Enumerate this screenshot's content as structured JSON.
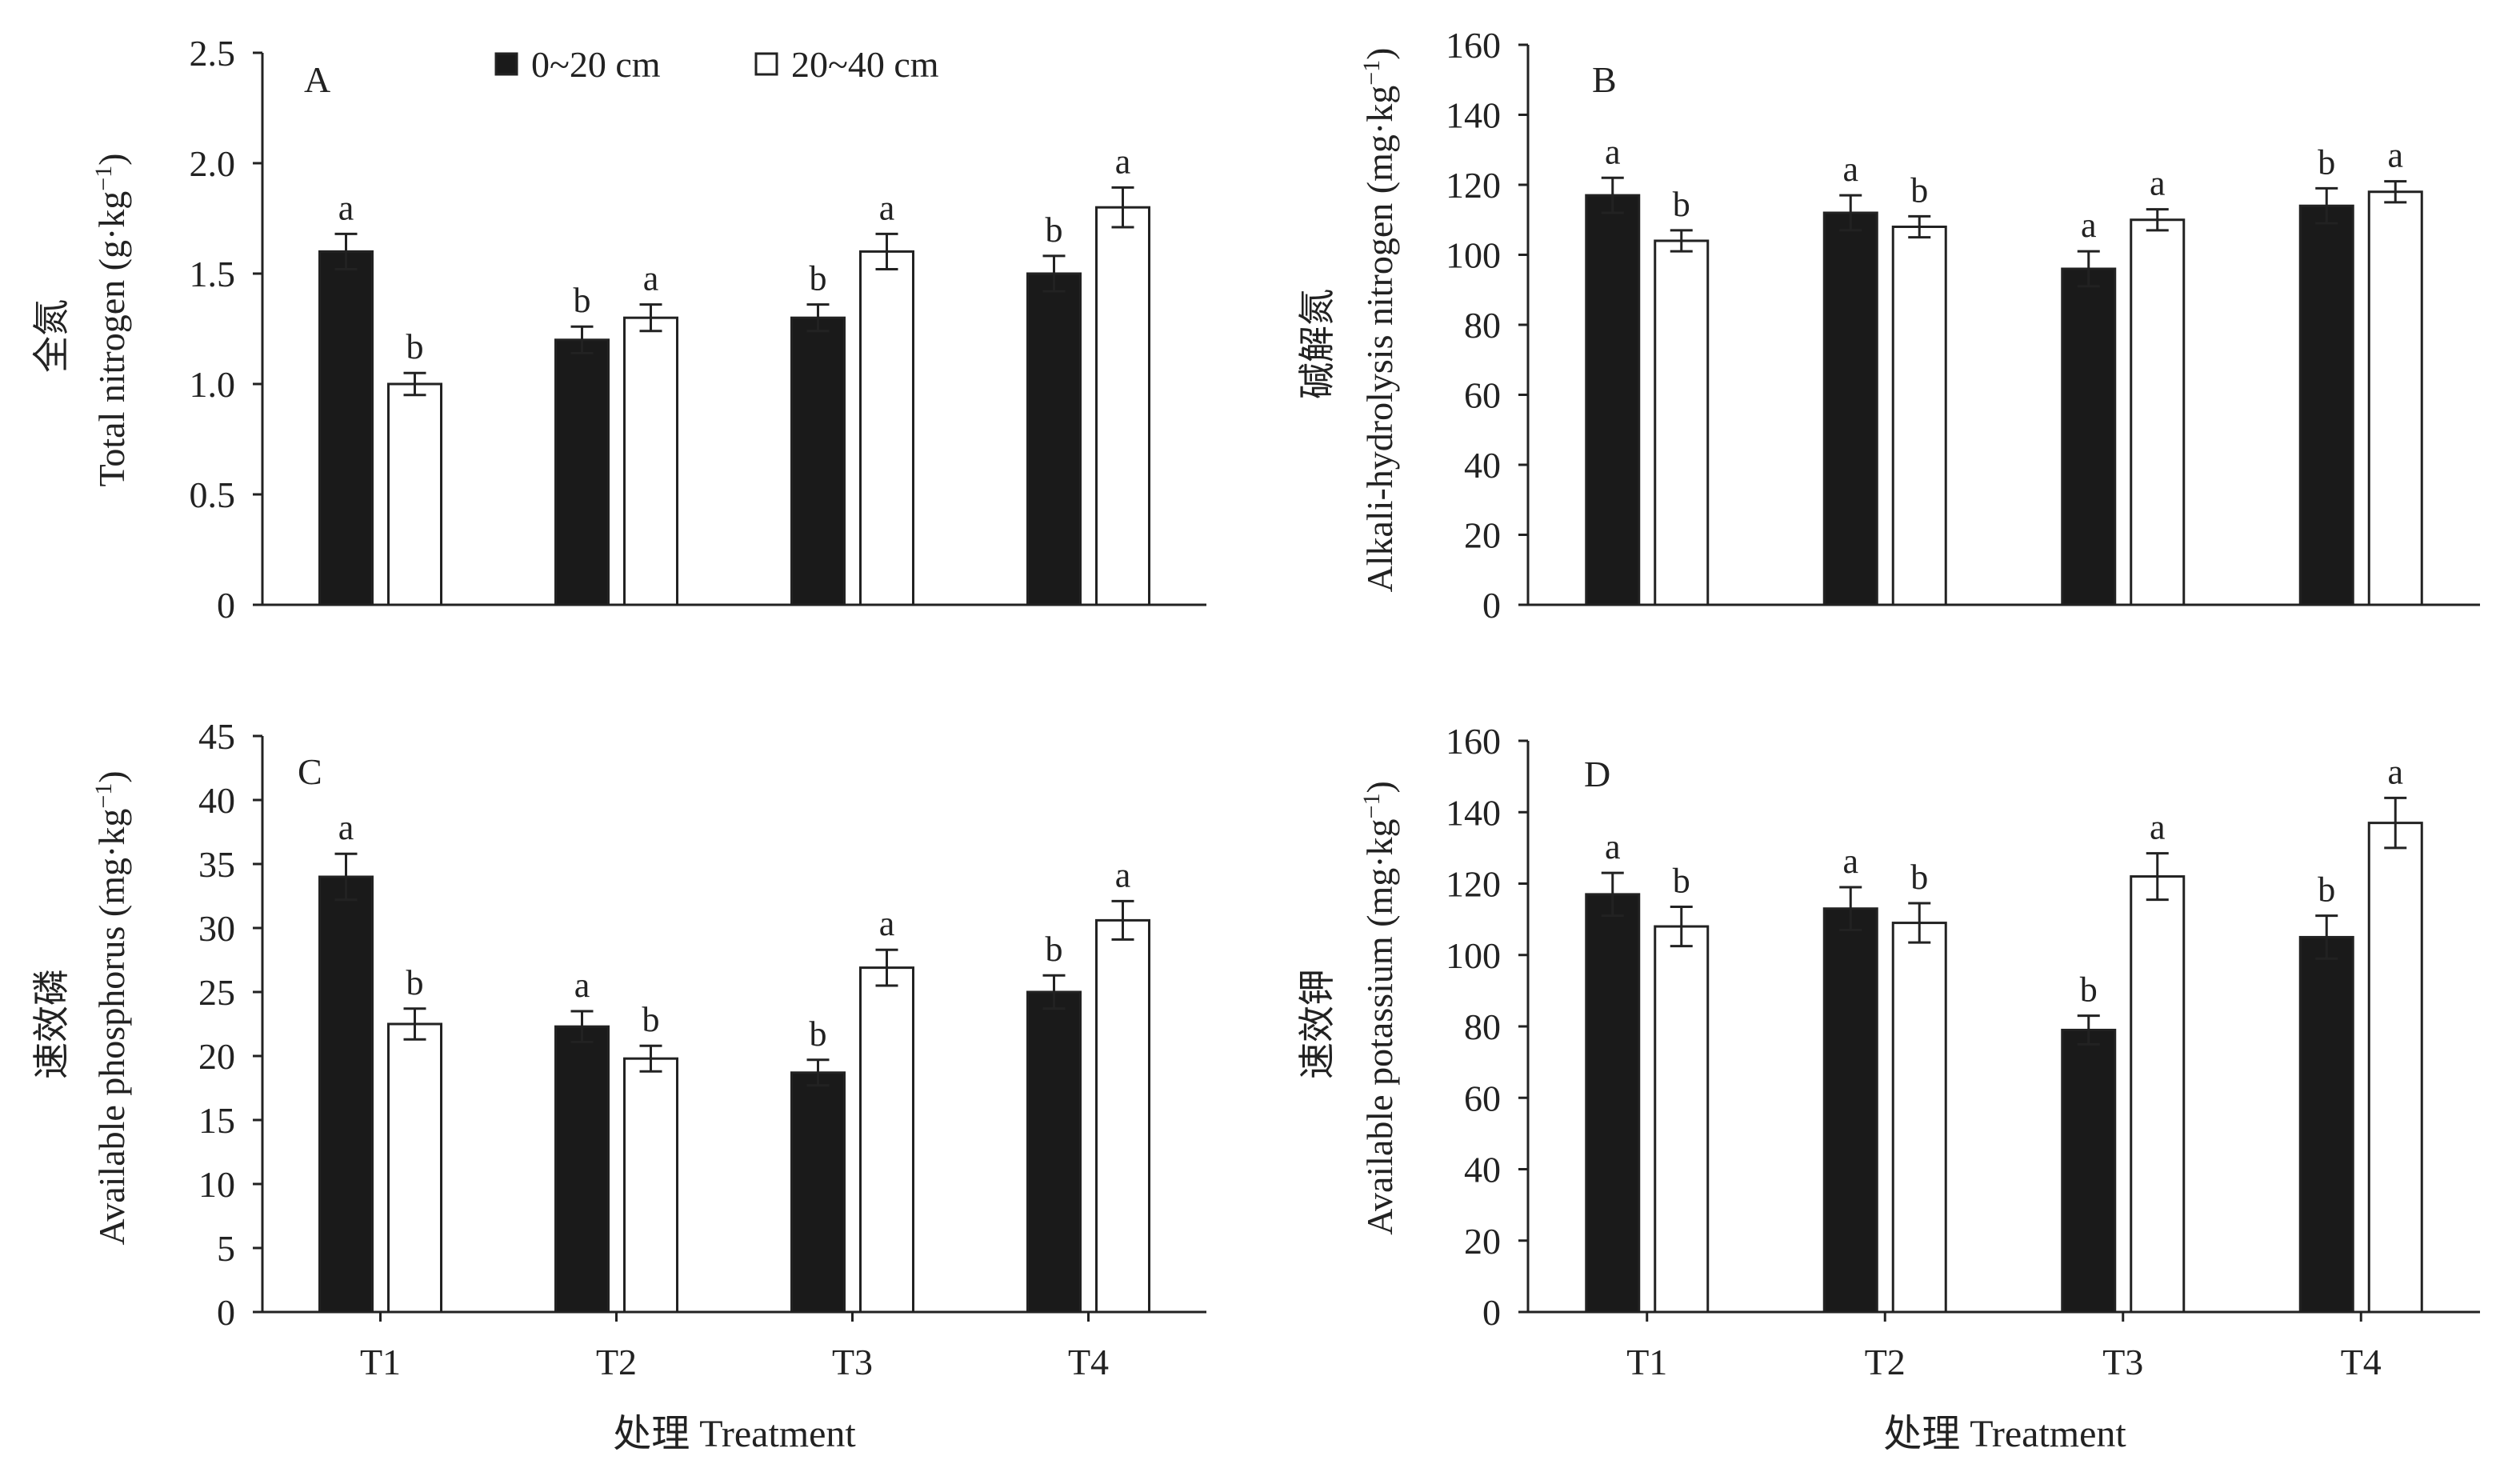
{
  "colors": {
    "series_0_20": "#1a1a1a",
    "series_20_40": "#ffffff",
    "axis": "#222222"
  },
  "legend": {
    "items": [
      {
        "name": "0~20 cm",
        "color": "#1a1a1a"
      },
      {
        "name": "20~40 cm",
        "color": "#ffffff"
      }
    ]
  },
  "xlabel": "处理 Treatment",
  "chart_data": [
    {
      "type": "bar",
      "panel": "A",
      "ylabel_cn": "全氮",
      "ylabel_en": "Total nitrogen (g·kg",
      "ylabel_unit_sup": "−1",
      "categories": [
        "T1",
        "T2",
        "T3",
        "T4"
      ],
      "ylim": [
        0,
        2.5
      ],
      "yticks": [
        "0",
        "0.5",
        "1.0",
        "1.5",
        "2.0",
        "2.5"
      ],
      "series": [
        {
          "name": "0~20 cm",
          "values": [
            1.6,
            1.2,
            1.3,
            1.5
          ],
          "errors": [
            0.08,
            0.06,
            0.06,
            0.08
          ],
          "letters": [
            "a",
            "b",
            "b",
            "b"
          ]
        },
        {
          "name": "20~40 cm",
          "values": [
            1.0,
            1.3,
            1.6,
            1.8
          ],
          "errors": [
            0.05,
            0.06,
            0.08,
            0.09
          ],
          "letters": [
            "b",
            "a",
            "a",
            "a"
          ]
        }
      ]
    },
    {
      "type": "bar",
      "panel": "B",
      "ylabel_cn": "碱解氮",
      "ylabel_en": "Alkali-hydrolysis nitrogen (mg·kg",
      "ylabel_unit_sup": "−1",
      "categories": [
        "T1",
        "T2",
        "T3",
        "T4"
      ],
      "ylim": [
        0,
        160
      ],
      "yticks": [
        "0",
        "20",
        "40",
        "60",
        "80",
        "100",
        "120",
        "140",
        "160"
      ],
      "series": [
        {
          "name": "0~20 cm",
          "values": [
            117,
            112,
            96,
            114
          ],
          "errors": [
            5,
            5,
            5,
            5
          ],
          "letters": [
            "a",
            "a",
            "a",
            "b"
          ]
        },
        {
          "name": "20~40 cm",
          "values": [
            104,
            108,
            110,
            118
          ],
          "errors": [
            3,
            3,
            3,
            3
          ],
          "letters": [
            "b",
            "b",
            "a",
            "a"
          ]
        }
      ]
    },
    {
      "type": "bar",
      "panel": "C",
      "ylabel_cn": "速效磷",
      "ylabel_en": "Available phosphorus (mg·kg",
      "ylabel_unit_sup": "−1",
      "categories": [
        "T1",
        "T2",
        "T3",
        "T4"
      ],
      "ylim": [
        0,
        45
      ],
      "yticks": [
        "0",
        "5",
        "10",
        "15",
        "20",
        "25",
        "30",
        "35",
        "40",
        "45"
      ],
      "series": [
        {
          "name": "0~20 cm",
          "values": [
            34,
            22.3,
            18.7,
            25
          ],
          "errors": [
            1.8,
            1.2,
            1.0,
            1.3
          ],
          "letters": [
            "a",
            "a",
            "b",
            "b"
          ]
        },
        {
          "name": "20~40 cm",
          "values": [
            22.5,
            19.8,
            26.9,
            30.6
          ],
          "errors": [
            1.2,
            1.0,
            1.4,
            1.5
          ],
          "letters": [
            "b",
            "b",
            "a",
            "a"
          ]
        }
      ]
    },
    {
      "type": "bar",
      "panel": "D",
      "ylabel_cn": "速效钾",
      "ylabel_en": "Available potassium (mg·kg",
      "ylabel_unit_sup": "−1",
      "categories": [
        "T1",
        "T2",
        "T3",
        "T4"
      ],
      "ylim": [
        0,
        160
      ],
      "yticks": [
        "0",
        "20",
        "40",
        "60",
        "80",
        "100",
        "120",
        "140",
        "160"
      ],
      "series": [
        {
          "name": "0~20 cm",
          "values": [
            117,
            113,
            79,
            105
          ],
          "errors": [
            6,
            6,
            4,
            6
          ],
          "letters": [
            "a",
            "a",
            "b",
            "b"
          ]
        },
        {
          "name": "20~40 cm",
          "values": [
            108,
            109,
            122,
            137
          ],
          "errors": [
            5.5,
            5.5,
            6.5,
            7
          ],
          "letters": [
            "b",
            "b",
            "a",
            "a"
          ]
        }
      ]
    }
  ]
}
